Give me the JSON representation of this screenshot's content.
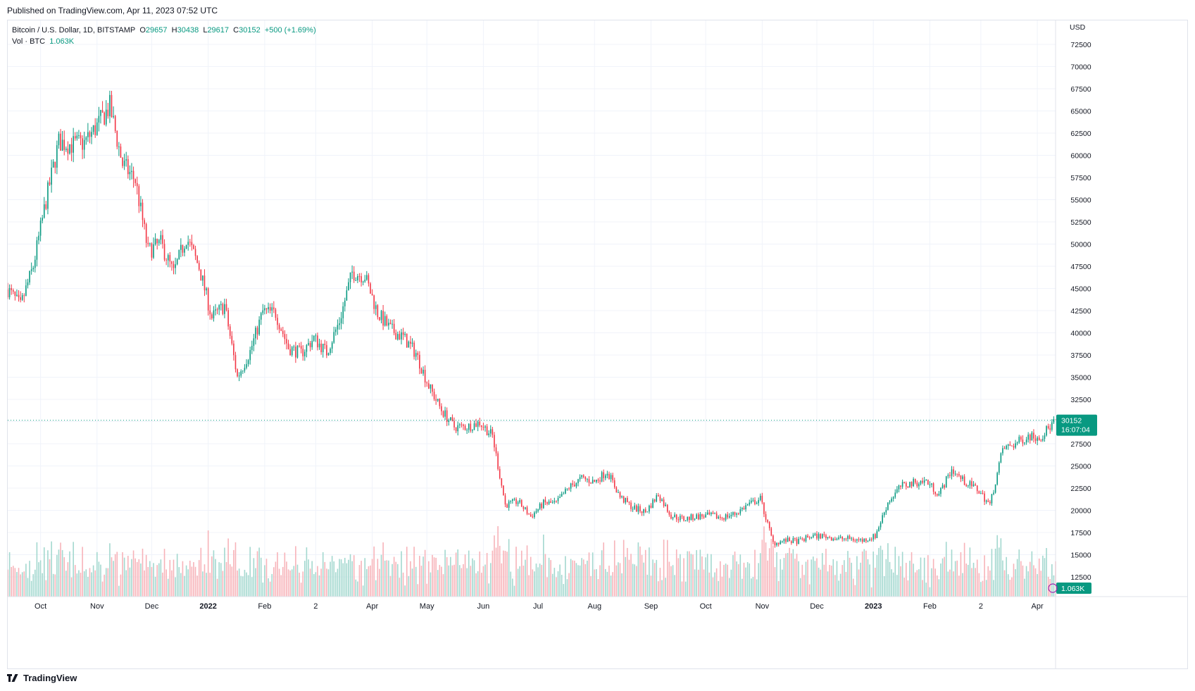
{
  "header": {
    "published": "Published on TradingView.com, Apr 11, 2023 07:52 UTC"
  },
  "legend": {
    "symbol": "Bitcoin / U.S. Dollar, 1D, BITSTAMP",
    "o_label": "O",
    "o_value": "29657",
    "h_label": "H",
    "h_value": "30438",
    "l_label": "L",
    "l_value": "29617",
    "c_label": "C",
    "c_value": "30152",
    "change": "+500 (+1.69%)",
    "vol_label": "Vol · BTC",
    "vol_value": "1.063K"
  },
  "price_badge": {
    "price": "30152",
    "countdown": "16:07:04"
  },
  "volume_badge": "1.063K",
  "brand": "TradingView",
  "colors": {
    "up": "#089981",
    "down": "#f23645",
    "grid": "#f0f3fa",
    "text": "#131722"
  },
  "chart_data": {
    "type": "candlestick",
    "symbol": "Bitcoin / U.S. Dollar",
    "interval": "1D",
    "exchange": "BITSTAMP",
    "currency": "USD",
    "x_range": [
      "2021-09-13",
      "2023-04-11"
    ],
    "ylim": [
      10000,
      75000
    ],
    "y_ticks": [
      12500,
      15000,
      17500,
      20000,
      22500,
      25000,
      27500,
      30000,
      32500,
      35000,
      37500,
      40000,
      42500,
      45000,
      47500,
      50000,
      52500,
      55000,
      57500,
      60000,
      62500,
      65000,
      67500,
      70000,
      72500
    ],
    "x_tick_labels": [
      {
        "date": "2021-10-01",
        "label": "Oct"
      },
      {
        "date": "2021-11-01",
        "label": "Nov"
      },
      {
        "date": "2021-12-01",
        "label": "Dec"
      },
      {
        "date": "2022-01-01",
        "label": "2022"
      },
      {
        "date": "2022-02-01",
        "label": "Feb"
      },
      {
        "date": "2022-03-01",
        "label": "2"
      },
      {
        "date": "2022-04-01",
        "label": "Apr"
      },
      {
        "date": "2022-05-01",
        "label": "May"
      },
      {
        "date": "2022-06-01",
        "label": "Jun"
      },
      {
        "date": "2022-07-01",
        "label": "Jul"
      },
      {
        "date": "2022-08-01",
        "label": "Aug"
      },
      {
        "date": "2022-09-01",
        "label": "Sep"
      },
      {
        "date": "2022-10-01",
        "label": "Oct"
      },
      {
        "date": "2022-11-01",
        "label": "Nov"
      },
      {
        "date": "2022-12-01",
        "label": "Dec"
      },
      {
        "date": "2023-01-01",
        "label": "2023"
      },
      {
        "date": "2023-02-01",
        "label": "Feb"
      },
      {
        "date": "2023-03-01",
        "label": "2"
      },
      {
        "date": "2023-04-01",
        "label": "Apr"
      }
    ],
    "last_price": 30152,
    "series": [
      {
        "date": "2021-09-13",
        "close": 44900
      },
      {
        "date": "2021-09-20",
        "close": 43000
      },
      {
        "date": "2021-09-27",
        "close": 47500
      },
      {
        "date": "2021-10-04",
        "close": 54900
      },
      {
        "date": "2021-10-11",
        "close": 61500
      },
      {
        "date": "2021-10-18",
        "close": 61200
      },
      {
        "date": "2021-10-25",
        "close": 61400
      },
      {
        "date": "2021-11-01",
        "close": 63300
      },
      {
        "date": "2021-11-08",
        "close": 65500
      },
      {
        "date": "2021-11-15",
        "close": 59000
      },
      {
        "date": "2021-11-22",
        "close": 57200
      },
      {
        "date": "2021-11-29",
        "close": 49200
      },
      {
        "date": "2021-12-06",
        "close": 50100
      },
      {
        "date": "2021-12-13",
        "close": 46700
      },
      {
        "date": "2021-12-20",
        "close": 50800
      },
      {
        "date": "2021-12-27",
        "close": 47400
      },
      {
        "date": "2022-01-03",
        "close": 41700
      },
      {
        "date": "2022-01-10",
        "close": 43100
      },
      {
        "date": "2022-01-17",
        "close": 35000
      },
      {
        "date": "2022-01-24",
        "close": 37900
      },
      {
        "date": "2022-01-31",
        "close": 42400
      },
      {
        "date": "2022-02-07",
        "close": 42200
      },
      {
        "date": "2022-02-14",
        "close": 38300
      },
      {
        "date": "2022-02-21",
        "close": 37700
      },
      {
        "date": "2022-02-28",
        "close": 39400
      },
      {
        "date": "2022-03-07",
        "close": 37800
      },
      {
        "date": "2022-03-14",
        "close": 41300
      },
      {
        "date": "2022-03-21",
        "close": 46800
      },
      {
        "date": "2022-03-28",
        "close": 46400
      },
      {
        "date": "2022-04-04",
        "close": 42200
      },
      {
        "date": "2022-04-11",
        "close": 40400
      },
      {
        "date": "2022-04-18",
        "close": 39500
      },
      {
        "date": "2022-04-25",
        "close": 37700
      },
      {
        "date": "2022-05-02",
        "close": 34000
      },
      {
        "date": "2022-05-09",
        "close": 31300
      },
      {
        "date": "2022-05-16",
        "close": 29400
      },
      {
        "date": "2022-05-23",
        "close": 29400
      },
      {
        "date": "2022-05-30",
        "close": 29900
      },
      {
        "date": "2022-06-06",
        "close": 28400
      },
      {
        "date": "2022-06-13",
        "close": 20600
      },
      {
        "date": "2022-06-20",
        "close": 21000
      },
      {
        "date": "2022-06-27",
        "close": 19300
      },
      {
        "date": "2022-07-04",
        "close": 20800
      },
      {
        "date": "2022-07-11",
        "close": 20800
      },
      {
        "date": "2022-07-18",
        "close": 22600
      },
      {
        "date": "2022-07-25",
        "close": 23600
      },
      {
        "date": "2022-08-01",
        "close": 23200
      },
      {
        "date": "2022-08-08",
        "close": 24400
      },
      {
        "date": "2022-08-15",
        "close": 21500
      },
      {
        "date": "2022-08-22",
        "close": 20300
      },
      {
        "date": "2022-08-29",
        "close": 19800
      },
      {
        "date": "2022-09-05",
        "close": 21800
      },
      {
        "date": "2022-09-12",
        "close": 19400
      },
      {
        "date": "2022-09-19",
        "close": 19000
      },
      {
        "date": "2022-09-26",
        "close": 19300
      },
      {
        "date": "2022-10-03",
        "close": 19400
      },
      {
        "date": "2022-10-10",
        "close": 19200
      },
      {
        "date": "2022-10-17",
        "close": 19600
      },
      {
        "date": "2022-10-24",
        "close": 20600
      },
      {
        "date": "2022-10-31",
        "close": 21300
      },
      {
        "date": "2022-11-07",
        "close": 16300
      },
      {
        "date": "2022-11-14",
        "close": 16600
      },
      {
        "date": "2022-11-21",
        "close": 16500
      },
      {
        "date": "2022-11-28",
        "close": 17100
      },
      {
        "date": "2022-12-05",
        "close": 17100
      },
      {
        "date": "2022-12-12",
        "close": 16800
      },
      {
        "date": "2022-12-19",
        "close": 16800
      },
      {
        "date": "2022-12-26",
        "close": 16600
      },
      {
        "date": "2023-01-02",
        "close": 17100
      },
      {
        "date": "2023-01-09",
        "close": 20900
      },
      {
        "date": "2023-01-16",
        "close": 22700
      },
      {
        "date": "2023-01-23",
        "close": 23100
      },
      {
        "date": "2023-01-30",
        "close": 23300
      },
      {
        "date": "2023-02-06",
        "close": 21800
      },
      {
        "date": "2023-02-13",
        "close": 24600
      },
      {
        "date": "2023-02-20",
        "close": 23200
      },
      {
        "date": "2023-02-27",
        "close": 22400
      },
      {
        "date": "2023-03-06",
        "close": 20600
      },
      {
        "date": "2023-03-13",
        "close": 26900
      },
      {
        "date": "2023-03-20",
        "close": 27500
      },
      {
        "date": "2023-03-27",
        "close": 28400
      },
      {
        "date": "2023-04-03",
        "close": 28300
      },
      {
        "date": "2023-04-11",
        "close": 30152
      }
    ]
  }
}
